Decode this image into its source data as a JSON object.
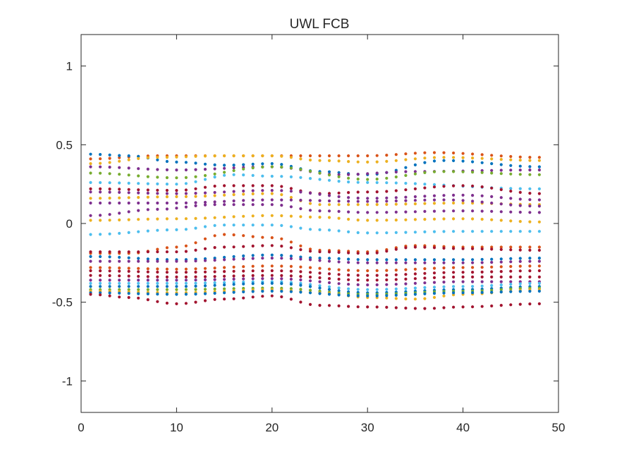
{
  "chart_data": {
    "type": "scatter",
    "title": "UWL FCB",
    "xlabel": "",
    "ylabel": "",
    "xlim": [
      0,
      50
    ],
    "ylim": [
      -1.2,
      1.2
    ],
    "x_ticks": [
      "0",
      "10",
      "20",
      "30",
      "40",
      "50"
    ],
    "y_ticks": [
      "-1",
      "-0.5",
      "0",
      "0.5",
      "1"
    ],
    "grid": false,
    "legend": "none",
    "marker": "dot",
    "colors": [
      "#0072BD",
      "#D95319",
      "#EDB120",
      "#7E2F8E",
      "#77AC30",
      "#4DBEEE",
      "#A2142F"
    ],
    "x": [
      1,
      2,
      3,
      4,
      5,
      6,
      7,
      8,
      9,
      10,
      11,
      12,
      13,
      14,
      15,
      16,
      17,
      18,
      19,
      20,
      21,
      22,
      23,
      24,
      25,
      26,
      27,
      28,
      29,
      30,
      31,
      32,
      33,
      34,
      35,
      36,
      37,
      38,
      39,
      40,
      41,
      42,
      43,
      44,
      45,
      46,
      47,
      48
    ],
    "series": [
      {
        "color": "#D95319",
        "anchors": [
          [
            1,
            0.41
          ],
          [
            8,
            0.43
          ],
          [
            20,
            0.43
          ],
          [
            30,
            0.43
          ],
          [
            37,
            0.45
          ],
          [
            48,
            0.42
          ]
        ]
      },
      {
        "color": "#0072BD",
        "anchors": [
          [
            1,
            0.44
          ],
          [
            5,
            0.43
          ],
          [
            10,
            0.39
          ],
          [
            15,
            0.37
          ],
          [
            20,
            0.38
          ],
          [
            25,
            0.33
          ],
          [
            30,
            0.31
          ],
          [
            38,
            0.4
          ],
          [
            48,
            0.36
          ]
        ]
      },
      {
        "color": "#EDB120",
        "anchors": [
          [
            1,
            0.38
          ],
          [
            8,
            0.42
          ],
          [
            15,
            0.43
          ],
          [
            20,
            0.43
          ],
          [
            25,
            0.4
          ],
          [
            30,
            0.39
          ],
          [
            38,
            0.42
          ],
          [
            48,
            0.4
          ]
        ]
      },
      {
        "color": "#7E2F8E",
        "anchors": [
          [
            1,
            0.36
          ],
          [
            10,
            0.34
          ],
          [
            20,
            0.36
          ],
          [
            27,
            0.31
          ],
          [
            35,
            0.33
          ],
          [
            48,
            0.34
          ]
        ]
      },
      {
        "color": "#77AC30",
        "anchors": [
          [
            1,
            0.32
          ],
          [
            10,
            0.29
          ],
          [
            20,
            0.36
          ],
          [
            30,
            0.28
          ],
          [
            38,
            0.33
          ],
          [
            48,
            0.31
          ]
        ]
      },
      {
        "color": "#4DBEEE",
        "anchors": [
          [
            1,
            0.26
          ],
          [
            10,
            0.25
          ],
          [
            16,
            0.31
          ],
          [
            20,
            0.3
          ],
          [
            30,
            0.26
          ],
          [
            48,
            0.22
          ]
        ]
      },
      {
        "color": "#A2142F",
        "anchors": [
          [
            1,
            0.22
          ],
          [
            10,
            0.21
          ],
          [
            15,
            0.24
          ],
          [
            20,
            0.24
          ],
          [
            25,
            0.19
          ],
          [
            30,
            0.2
          ],
          [
            40,
            0.24
          ],
          [
            48,
            0.19
          ]
        ]
      },
      {
        "color": "#7E2F8E",
        "anchors": [
          [
            1,
            0.2
          ],
          [
            10,
            0.19
          ],
          [
            20,
            0.21
          ],
          [
            30,
            0.16
          ],
          [
            40,
            0.18
          ],
          [
            48,
            0.15
          ]
        ]
      },
      {
        "color": "#EDB120",
        "anchors": [
          [
            1,
            0.16
          ],
          [
            10,
            0.17
          ],
          [
            20,
            0.19
          ],
          [
            25,
            0.12
          ],
          [
            30,
            0.12
          ],
          [
            40,
            0.13
          ],
          [
            48,
            0.12
          ]
        ]
      },
      {
        "color": "#7E2F8E",
        "anchors": [
          [
            1,
            0.13
          ],
          [
            10,
            0.13
          ],
          [
            20,
            0.15
          ],
          [
            30,
            0.14
          ],
          [
            38,
            0.15
          ],
          [
            48,
            0.11
          ]
        ]
      },
      {
        "color": "#7E2F8E",
        "anchors": [
          [
            1,
            0.05
          ],
          [
            8,
            0.09
          ],
          [
            14,
            0.12
          ],
          [
            20,
            0.12
          ],
          [
            25,
            0.08
          ],
          [
            30,
            0.07
          ],
          [
            40,
            0.08
          ],
          [
            48,
            0.07
          ]
        ]
      },
      {
        "color": "#EDB120",
        "anchors": [
          [
            1,
            0.02
          ],
          [
            10,
            0.03
          ],
          [
            20,
            0.05
          ],
          [
            25,
            0.04
          ],
          [
            30,
            0.02
          ],
          [
            40,
            0.03
          ],
          [
            48,
            0.01
          ]
        ]
      },
      {
        "color": "#4DBEEE",
        "anchors": [
          [
            1,
            -0.07
          ],
          [
            10,
            -0.04
          ],
          [
            15,
            -0.01
          ],
          [
            20,
            -0.01
          ],
          [
            25,
            -0.04
          ],
          [
            30,
            -0.06
          ],
          [
            40,
            -0.05
          ],
          [
            48,
            -0.05
          ]
        ]
      },
      {
        "color": "#D95319",
        "anchors": [
          [
            1,
            -0.19
          ],
          [
            5,
            -0.19
          ],
          [
            10,
            -0.15
          ],
          [
            15,
            -0.07
          ],
          [
            20,
            -0.09
          ],
          [
            25,
            -0.17
          ],
          [
            30,
            -0.18
          ],
          [
            35,
            -0.14
          ],
          [
            40,
            -0.15
          ],
          [
            48,
            -0.15
          ]
        ]
      },
      {
        "color": "#A2142F",
        "anchors": [
          [
            1,
            -0.18
          ],
          [
            5,
            -0.18
          ],
          [
            10,
            -0.18
          ],
          [
            15,
            -0.15
          ],
          [
            20,
            -0.14
          ],
          [
            25,
            -0.18
          ],
          [
            30,
            -0.19
          ],
          [
            35,
            -0.15
          ],
          [
            40,
            -0.16
          ],
          [
            48,
            -0.17
          ]
        ]
      },
      {
        "color": "#0072BD",
        "anchors": [
          [
            1,
            -0.21
          ],
          [
            10,
            -0.23
          ],
          [
            20,
            -0.2
          ],
          [
            25,
            -0.22
          ],
          [
            30,
            -0.23
          ],
          [
            40,
            -0.23
          ],
          [
            48,
            -0.22
          ]
        ]
      },
      {
        "color": "#7E2F8E",
        "anchors": [
          [
            1,
            -0.24
          ],
          [
            10,
            -0.24
          ],
          [
            20,
            -0.22
          ],
          [
            30,
            -0.25
          ],
          [
            40,
            -0.25
          ],
          [
            48,
            -0.24
          ]
        ]
      },
      {
        "color": "#D95319",
        "anchors": [
          [
            1,
            -0.28
          ],
          [
            10,
            -0.29
          ],
          [
            20,
            -0.27
          ],
          [
            30,
            -0.3
          ],
          [
            40,
            -0.28
          ],
          [
            48,
            -0.27
          ]
        ]
      },
      {
        "color": "#A2142F",
        "anchors": [
          [
            1,
            -0.3
          ],
          [
            10,
            -0.31
          ],
          [
            20,
            -0.3
          ],
          [
            30,
            -0.33
          ],
          [
            40,
            -0.31
          ],
          [
            48,
            -0.3
          ]
        ]
      },
      {
        "color": "#A2142F",
        "anchors": [
          [
            1,
            -0.33
          ],
          [
            10,
            -0.34
          ],
          [
            20,
            -0.33
          ],
          [
            30,
            -0.36
          ],
          [
            40,
            -0.34
          ],
          [
            48,
            -0.34
          ]
        ]
      },
      {
        "color": "#7E2F8E",
        "anchors": [
          [
            1,
            -0.36
          ],
          [
            10,
            -0.36
          ],
          [
            20,
            -0.35
          ],
          [
            30,
            -0.39
          ],
          [
            40,
            -0.37
          ],
          [
            48,
            -0.37
          ]
        ]
      },
      {
        "color": "#4DBEEE",
        "anchors": [
          [
            1,
            -0.38
          ],
          [
            10,
            -0.38
          ],
          [
            20,
            -0.37
          ],
          [
            30,
            -0.42
          ],
          [
            40,
            -0.4
          ],
          [
            48,
            -0.38
          ]
        ]
      },
      {
        "color": "#0072BD",
        "anchors": [
          [
            1,
            -0.4
          ],
          [
            10,
            -0.4
          ],
          [
            20,
            -0.38
          ],
          [
            30,
            -0.44
          ],
          [
            40,
            -0.42
          ],
          [
            48,
            -0.4
          ]
        ]
      },
      {
        "color": "#77AC30",
        "anchors": [
          [
            1,
            -0.42
          ],
          [
            10,
            -0.42
          ],
          [
            20,
            -0.41
          ],
          [
            30,
            -0.45
          ],
          [
            40,
            -0.43
          ],
          [
            48,
            -0.41
          ]
        ]
      },
      {
        "color": "#EDB120",
        "anchors": [
          [
            1,
            -0.43
          ],
          [
            10,
            -0.44
          ],
          [
            20,
            -0.42
          ],
          [
            25,
            -0.44
          ],
          [
            30,
            -0.47
          ],
          [
            35,
            -0.48
          ],
          [
            40,
            -0.45
          ],
          [
            48,
            -0.42
          ]
        ]
      },
      {
        "color": "#0072BD",
        "anchors": [
          [
            1,
            -0.44
          ],
          [
            10,
            -0.45
          ],
          [
            20,
            -0.43
          ],
          [
            30,
            -0.46
          ],
          [
            40,
            -0.44
          ],
          [
            48,
            -0.43
          ]
        ]
      },
      {
        "color": "#A2142F",
        "anchors": [
          [
            1,
            -0.45
          ],
          [
            5,
            -0.47
          ],
          [
            10,
            -0.51
          ],
          [
            15,
            -0.48
          ],
          [
            20,
            -0.46
          ],
          [
            25,
            -0.52
          ],
          [
            30,
            -0.53
          ],
          [
            36,
            -0.54
          ],
          [
            40,
            -0.53
          ],
          [
            48,
            -0.51
          ]
        ]
      }
    ]
  }
}
